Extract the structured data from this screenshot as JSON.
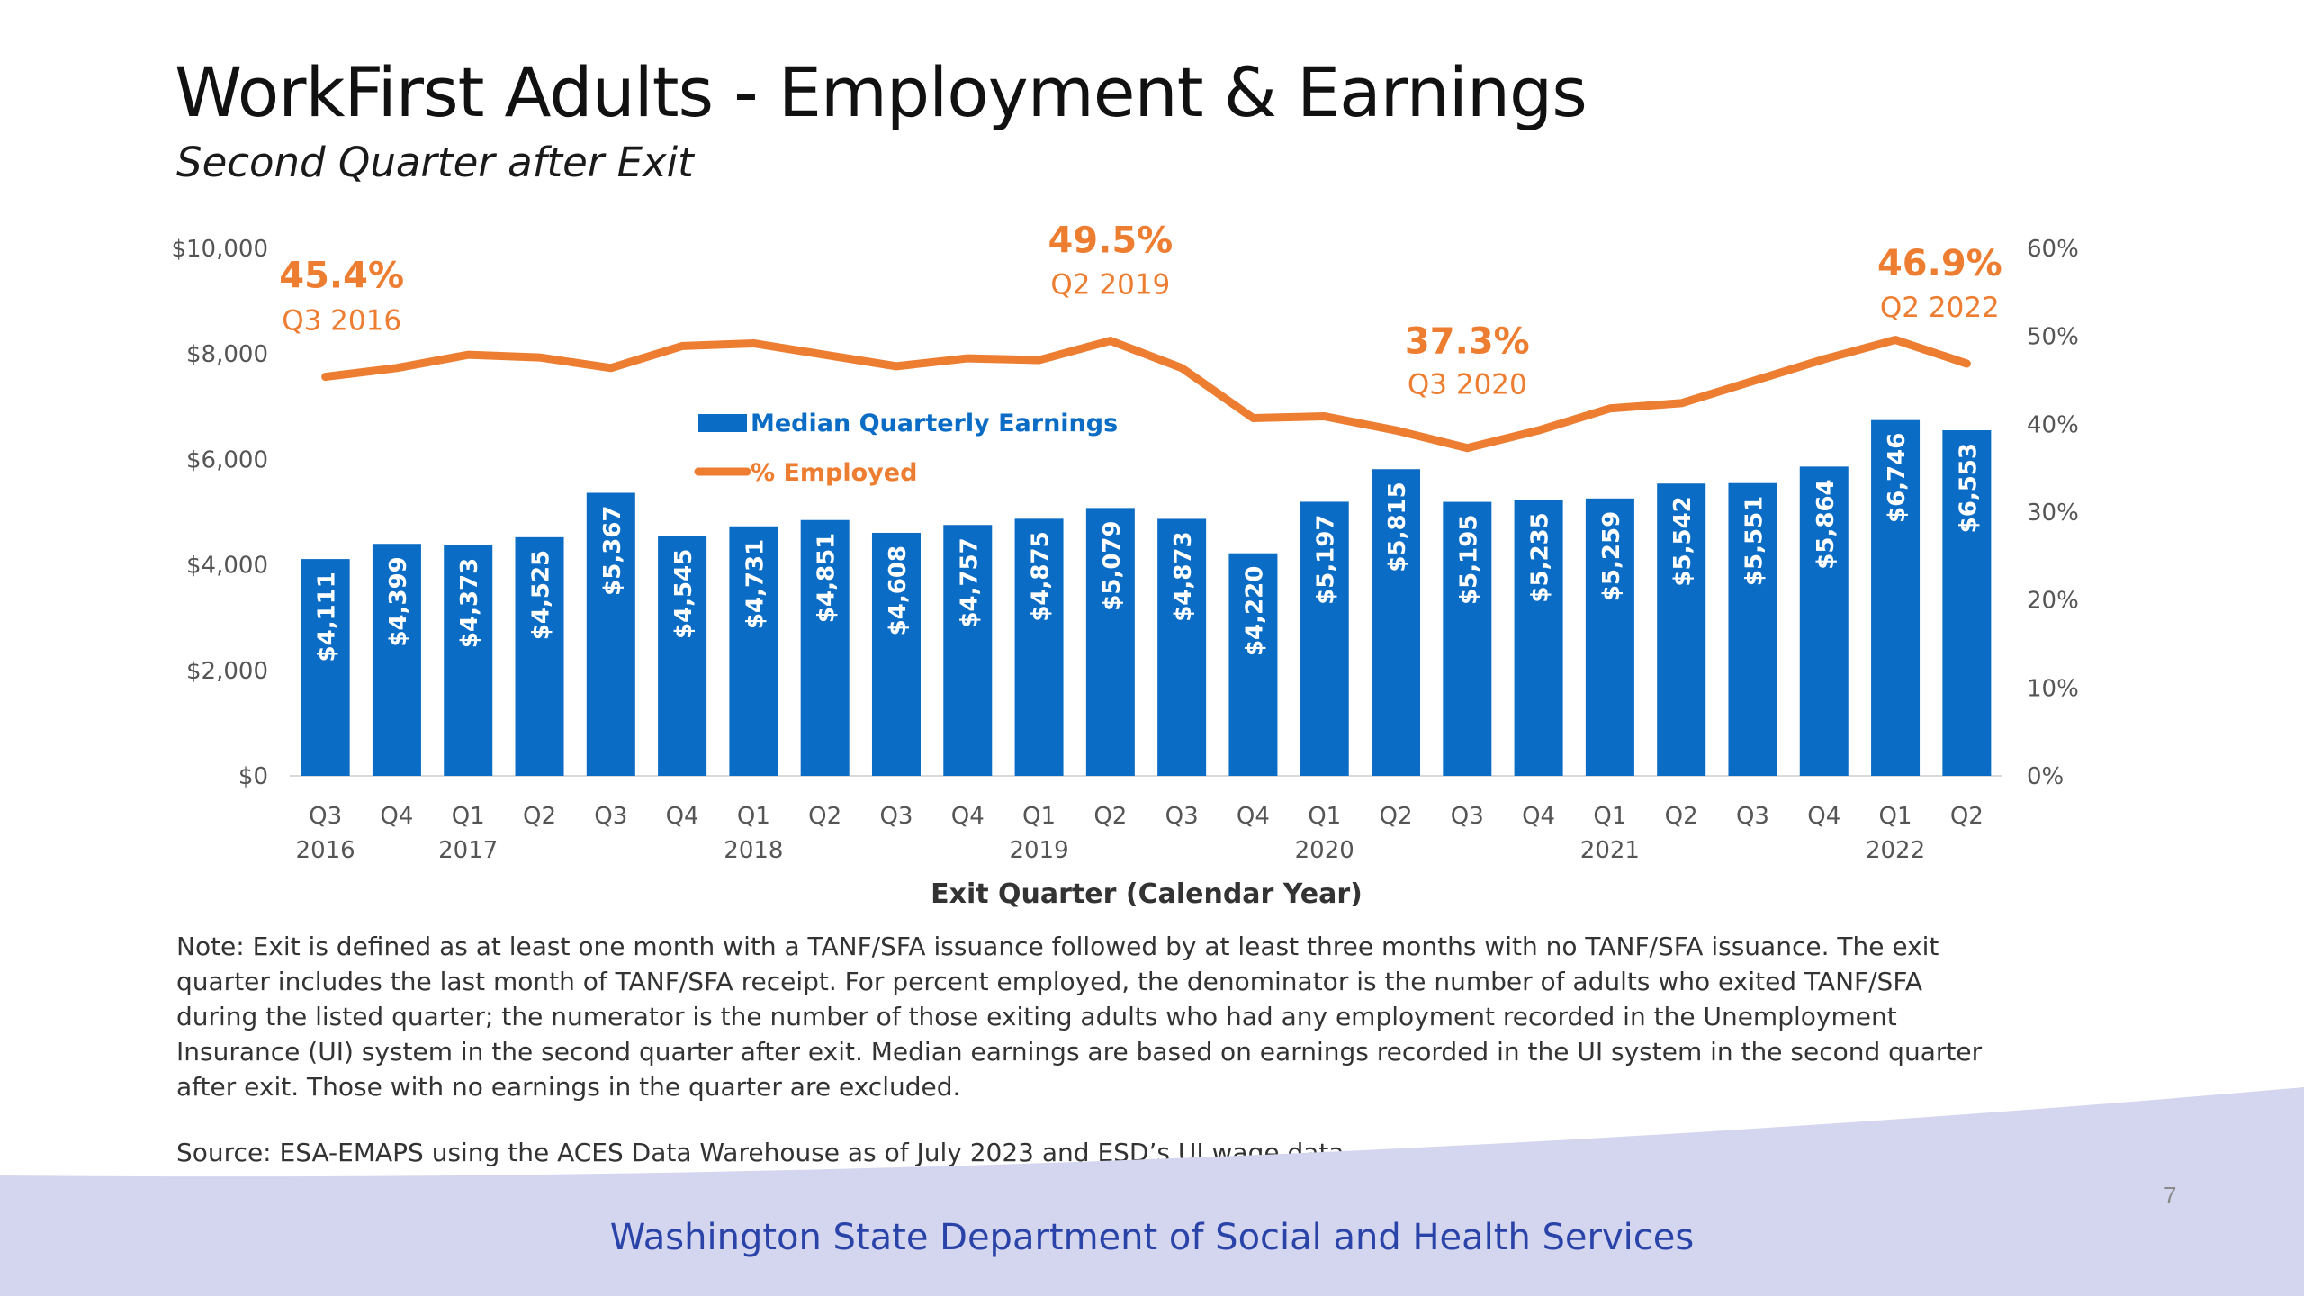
{
  "title": "WorkFirst Adults - Employment & Earnings",
  "subtitle": "Second Quarter after Exit",
  "note": "Note: Exit is defined as at least one month with a TANF/SFA issuance followed by at least three months with no TANF/SFA issuance. The exit quarter includes the last month of TANF/SFA receipt. For percent employed, the denominator is the number of adults who exited TANF/SFA during the listed quarter; the numerator is the number of those exiting adults who had any employment recorded in the Unemployment Insurance (UI) system in the second quarter after exit. Median earnings are based on earnings recorded in the UI system in the second quarter after exit. Those with no earnings in the quarter are excluded.",
  "source": "Source: ESA-EMAPS using the ACES Data Warehouse as of July 2023 and ESD’s UI wage data",
  "footer": "Washington State Department of Social and Health Services",
  "page_number": "7",
  "colors": {
    "bar": "#0a6cc4",
    "line": "#ed7d31",
    "footer_band": "#d3d6ee",
    "footer_text": "#2a43a8"
  },
  "chart_data": {
    "type": "bar+line",
    "categories": [
      "Q3",
      "Q4",
      "Q1",
      "Q2",
      "Q3",
      "Q4",
      "Q1",
      "Q2",
      "Q3",
      "Q4",
      "Q1",
      "Q2",
      "Q3",
      "Q4",
      "Q1",
      "Q2",
      "Q3",
      "Q4",
      "Q1",
      "Q2",
      "Q3",
      "Q4",
      "Q1",
      "Q2"
    ],
    "years": [
      "2016",
      "",
      "2017",
      "",
      "",
      "",
      "2018",
      "",
      "",
      "",
      "2019",
      "",
      "",
      "",
      "2020",
      "",
      "",
      "",
      "2021",
      "",
      "",
      "",
      "2022",
      ""
    ],
    "series": [
      {
        "name": "Median Quarterly Earnings",
        "type": "bar",
        "axis": "left",
        "values": [
          4111,
          4399,
          4373,
          4525,
          5367,
          4545,
          4731,
          4851,
          4608,
          4757,
          4875,
          5079,
          4873,
          4220,
          5197,
          5815,
          5195,
          5235,
          5259,
          5542,
          5551,
          5864,
          6746,
          6553
        ],
        "labels": [
          "$4,111",
          "$4,399",
          "$4,373",
          "$4,525",
          "$5,367",
          "$4,545",
          "$4,731",
          "$4,851",
          "$4,608",
          "$4,757",
          "$4,875",
          "$5,079",
          "$4,873",
          "$4,220",
          "$5,197",
          "$5,815",
          "$5,195",
          "$5,235",
          "$5,259",
          "$5,542",
          "$5,551",
          "$5,864",
          "$6,746",
          "$6,553"
        ]
      },
      {
        "name": "% Employed",
        "type": "line",
        "axis": "right",
        "values": [
          45.4,
          46.4,
          47.9,
          47.6,
          46.4,
          48.9,
          49.2,
          47.9,
          46.6,
          47.5,
          47.3,
          49.5,
          46.4,
          40.7,
          40.9,
          39.3,
          37.3,
          39.3,
          41.8,
          42.4,
          44.9,
          47.4,
          49.6,
          46.9
        ]
      }
    ],
    "y_left": {
      "min": 0,
      "max": 10000,
      "ticks": [
        "$0",
        "$2,000",
        "$4,000",
        "$6,000",
        "$8,000",
        "$10,000"
      ]
    },
    "y_right": {
      "min": 0,
      "max": 60,
      "ticks": [
        "0%",
        "10%",
        "20%",
        "30%",
        "40%",
        "50%",
        "60%"
      ]
    },
    "xlabel": "Exit Quarter (Calendar Year)",
    "annotations": [
      {
        "index": 0,
        "value": "45.4%",
        "label": "Q3 2016"
      },
      {
        "index": 11,
        "value": "49.5%",
        "label": "Q2 2019"
      },
      {
        "index": 16,
        "value": "37.3%",
        "label": "Q3 2020"
      },
      {
        "index": 23,
        "value": "46.9%",
        "label": "Q2 2022"
      }
    ],
    "legend_position": "inside-top-left",
    "grid": false
  }
}
